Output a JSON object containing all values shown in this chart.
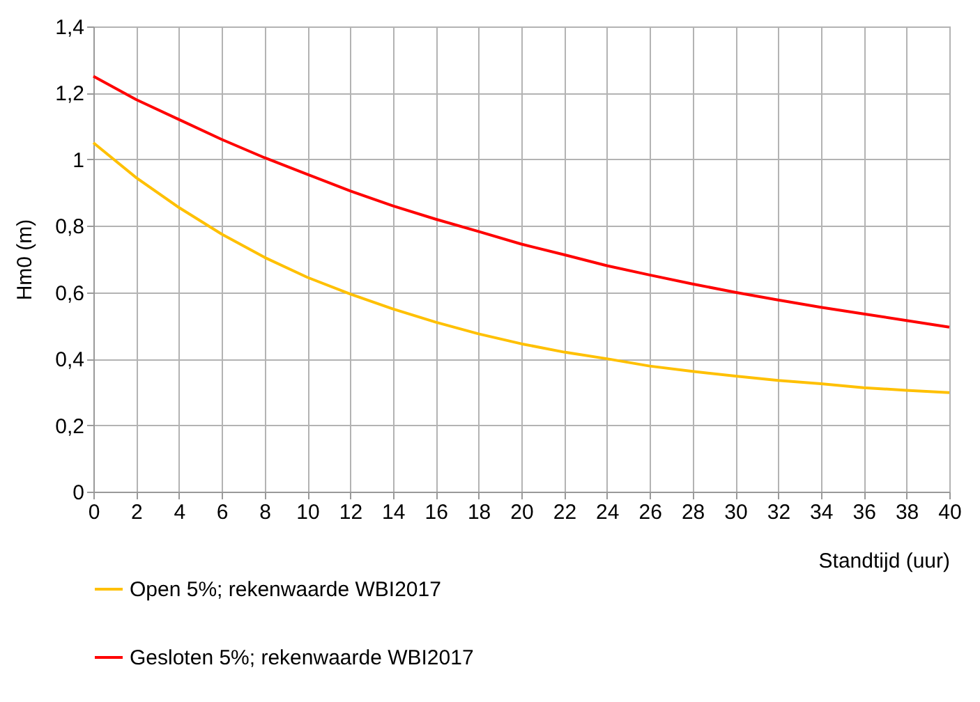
{
  "chart_data": {
    "type": "line",
    "xlabel": "Standtijd (uur)",
    "ylabel": "Hm0 (m)",
    "x": [
      0,
      2,
      4,
      6,
      8,
      10,
      12,
      14,
      16,
      18,
      20,
      22,
      24,
      26,
      28,
      30,
      32,
      34,
      36,
      38,
      40
    ],
    "series": [
      {
        "name": "Open 5%; rekenwaarde WBI2017",
        "color": "#ffc000",
        "values": [
          1.05,
          0.945,
          0.855,
          0.775,
          0.705,
          0.645,
          0.595,
          0.55,
          0.51,
          0.475,
          0.445,
          0.42,
          0.4,
          0.378,
          0.362,
          0.348,
          0.335,
          0.325,
          0.313,
          0.305,
          0.298
        ]
      },
      {
        "name": "Gesloten 5%; rekenwaarde WBI2017",
        "color": "#ff0000",
        "values": [
          1.25,
          1.18,
          1.12,
          1.06,
          1.005,
          0.955,
          0.905,
          0.86,
          0.82,
          0.783,
          0.745,
          0.713,
          0.68,
          0.652,
          0.625,
          0.6,
          0.577,
          0.555,
          0.535,
          0.515,
          0.495
        ]
      }
    ],
    "xlim": [
      0,
      40
    ],
    "xticks": [
      0,
      2,
      4,
      6,
      8,
      10,
      12,
      14,
      16,
      18,
      20,
      22,
      24,
      26,
      28,
      30,
      32,
      34,
      36,
      38,
      40
    ],
    "ylim": [
      0,
      1.4
    ],
    "yticks": [
      0,
      {
        "value": 0.2,
        "label": "0,2"
      },
      {
        "value": 0.4,
        "label": "0,4"
      },
      {
        "value": 0.6,
        "label": "0,6"
      },
      {
        "value": 0.8,
        "label": "0,8"
      },
      1,
      {
        "value": 1.2,
        "label": "1,2"
      },
      {
        "value": 1.4,
        "label": "1,4"
      }
    ],
    "grid": true,
    "legend": "bottom",
    "marker": "none",
    "line_style": "solid"
  }
}
